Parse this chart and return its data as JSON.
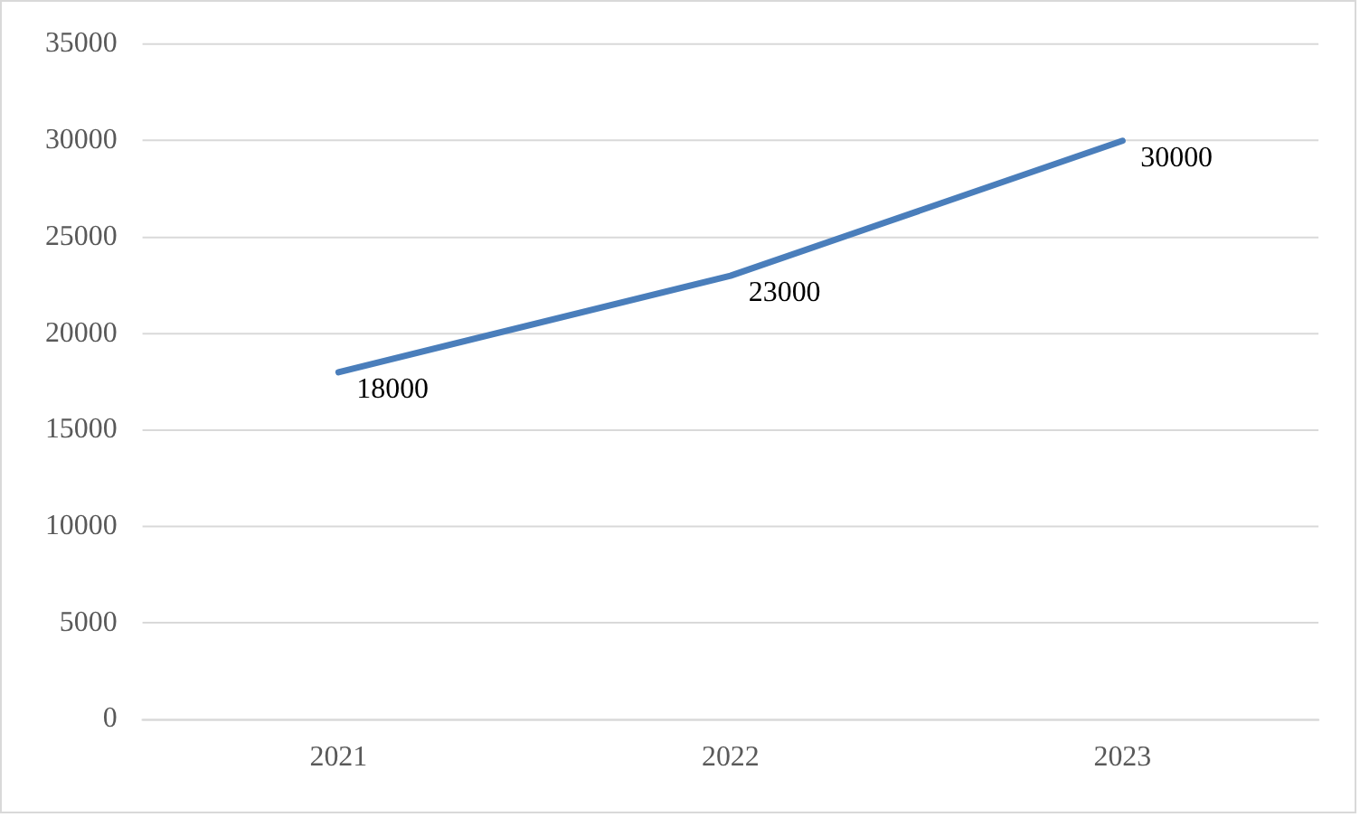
{
  "chart_data": {
    "type": "line",
    "categories": [
      "2021",
      "2022",
      "2023"
    ],
    "series": [
      {
        "color": "#4a7ebb",
        "values": [
          18000,
          23000,
          30000
        ]
      }
    ],
    "ylim": [
      0,
      35000
    ],
    "yticks": [
      0,
      5000,
      10000,
      15000,
      20000,
      25000,
      30000,
      35000
    ],
    "grid": "y",
    "data_labels": true,
    "legend": false,
    "marker": "none"
  }
}
